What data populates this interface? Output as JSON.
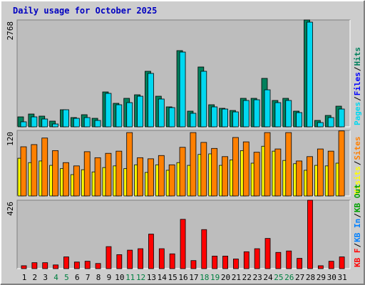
{
  "chart_data": [
    {
      "type": "bar",
      "title": "Daily usage for October 2025",
      "ylim": [
        0,
        2768
      ],
      "yticks": [
        2768
      ],
      "draw_reversed": true,
      "legend_separator": "/",
      "series": [
        {
          "name": "Pages",
          "color": "#00d8f0",
          "values": [
            130,
            258,
            203,
            74,
            443,
            221,
            240,
            166,
            867,
            572,
            627,
            793,
            1384,
            720,
            498,
            1937,
            351,
            1439,
            517,
            461,
            387,
            683,
            701,
            959,
            627,
            683,
            369,
            2712,
            111,
            240,
            461
          ]
        },
        {
          "name": "Files",
          "color": "#0000ff",
          "values": [
            null,
            null,
            null,
            null,
            null,
            null,
            null,
            null,
            null,
            null,
            null,
            null,
            null,
            null,
            null,
            null,
            null,
            null,
            null,
            null,
            null,
            null,
            null,
            null,
            null,
            null,
            null,
            null,
            null,
            null,
            null
          ]
        },
        {
          "name": "Hits",
          "color": "#00805c",
          "values": [
            258,
            332,
            277,
            148,
            443,
            240,
            314,
            221,
            904,
            609,
            738,
            830,
            1439,
            793,
            517,
            1974,
            406,
            1550,
            572,
            480,
            424,
            738,
            738,
            1255,
            683,
            738,
            406,
            2768,
            166,
            295,
            535
          ]
        }
      ]
    },
    {
      "type": "bar",
      "ylim": [
        0,
        120
      ],
      "yticks": [
        120
      ],
      "legend_separator": "/",
      "series": [
        {
          "name": "Visits",
          "color": "#ffff00",
          "values": [
            69,
            61,
            64,
            56,
            50,
            39,
            48,
            44,
            52,
            55,
            50,
            57,
            43,
            57,
            47,
            61,
            56,
            76,
            77,
            56,
            66,
            83,
            60,
            91,
            82,
            65,
            59,
            47,
            56,
            55,
            60
          ]
        },
        {
          "name": "Sites",
          "color": "#ff8000",
          "values": [
            90,
            94,
            106,
            83,
            61,
            55,
            81,
            70,
            78,
            82,
            116,
            70,
            68,
            74,
            57,
            89,
            116,
            98,
            87,
            72,
            107,
            99,
            80,
            116,
            86,
            116,
            64,
            72,
            86,
            82,
            119
          ]
        }
      ]
    },
    {
      "type": "bar",
      "ylim": [
        0,
        426
      ],
      "yticks": [
        426
      ],
      "legend_separator": "/",
      "categories": [
        "1",
        "2",
        "3",
        "4",
        "5",
        "6",
        "7",
        "8",
        "9",
        "10",
        "11",
        "12",
        "13",
        "14",
        "15",
        "16",
        "17",
        "18",
        "19",
        "20",
        "21",
        "22",
        "23",
        "24",
        "25",
        "26",
        "27",
        "28",
        "29",
        "30",
        "31"
      ],
      "category_colors": [
        "#000000",
        "#000000",
        "#000000",
        "#008040",
        "#008040",
        "#000000",
        "#000000",
        "#000000",
        "#000000",
        "#000000",
        "#008040",
        "#008040",
        "#000000",
        "#000000",
        "#000000",
        "#000000",
        "#000000",
        "#008040",
        "#008040",
        "#000000",
        "#000000",
        "#000000",
        "#000000",
        "#000000",
        "#008040",
        "#008040",
        "#000000",
        "#000000",
        "#000000",
        "#000000",
        "#000000"
      ],
      "series": [
        {
          "name": "KB F",
          "color": "#ff0000",
          "values": [
            18,
            37,
            37,
            23,
            73,
            41,
            46,
            32,
            137,
            87,
            115,
            124,
            215,
            124,
            92,
            307,
            50,
            243,
            78,
            78,
            60,
            105,
            124,
            188,
            101,
            110,
            64,
            426,
            18,
            46,
            73
          ]
        },
        {
          "name": "KB In",
          "color": "#0080ff",
          "values": [
            null,
            null,
            null,
            null,
            null,
            null,
            null,
            null,
            null,
            null,
            null,
            null,
            null,
            null,
            null,
            null,
            null,
            null,
            null,
            null,
            null,
            null,
            null,
            null,
            null,
            null,
            null,
            null,
            null,
            null,
            null
          ]
        },
        {
          "name": "KB Out",
          "color": "#00a000",
          "values": [
            null,
            null,
            null,
            null,
            null,
            null,
            null,
            null,
            null,
            null,
            null,
            null,
            null,
            null,
            null,
            null,
            null,
            null,
            null,
            null,
            null,
            null,
            null,
            null,
            null,
            null,
            null,
            null,
            null,
            null,
            null
          ]
        }
      ]
    }
  ]
}
